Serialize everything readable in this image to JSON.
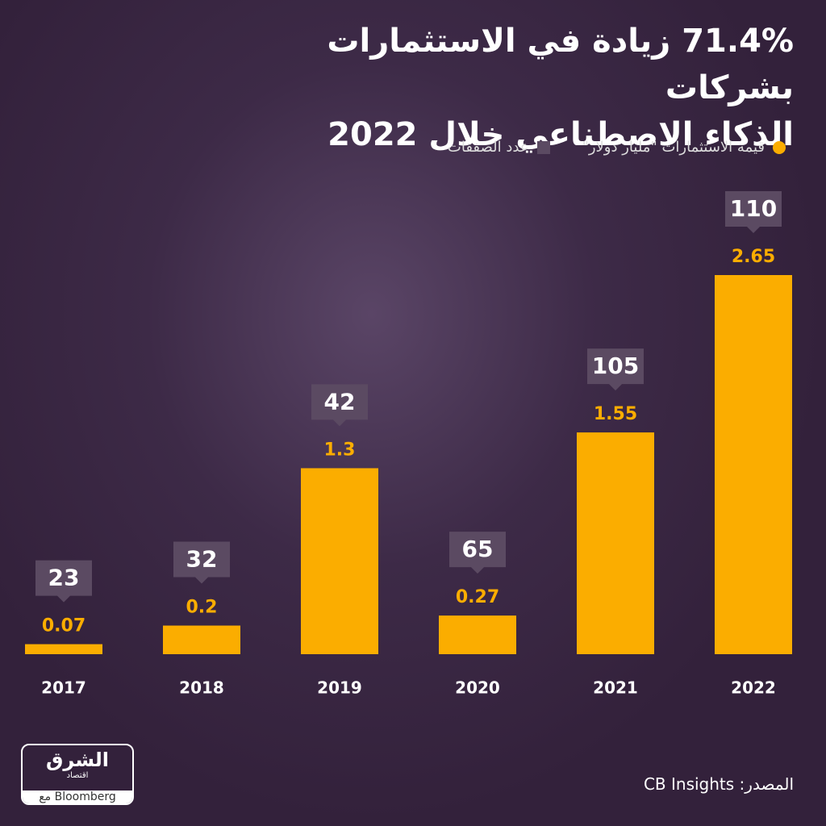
{
  "chart_data": {
    "type": "bar",
    "title": [
      "71.4% زيادة في الاستثمارات بشركات",
      "الذكاء الاصطناعي خلال 2022"
    ],
    "categories": [
      "2017",
      "2018",
      "2019",
      "2020",
      "2021",
      "2022"
    ],
    "series": [
      {
        "name": "قيمة الاستثمارات \"مليار دولار\"",
        "color": "#fbad00",
        "values": [
          0.07,
          0.2,
          1.3,
          0.27,
          1.55,
          2.65
        ]
      },
      {
        "name": "عدد الصفقات",
        "color": "#5b4a62",
        "values": [
          23,
          32,
          42,
          65,
          105,
          110
        ]
      }
    ],
    "source": "المصدر: CB Insights"
  },
  "logo": {
    "name": "الشرق",
    "sub": "اقتصاد",
    "with": "مع",
    "partner": "Bloomberg"
  }
}
